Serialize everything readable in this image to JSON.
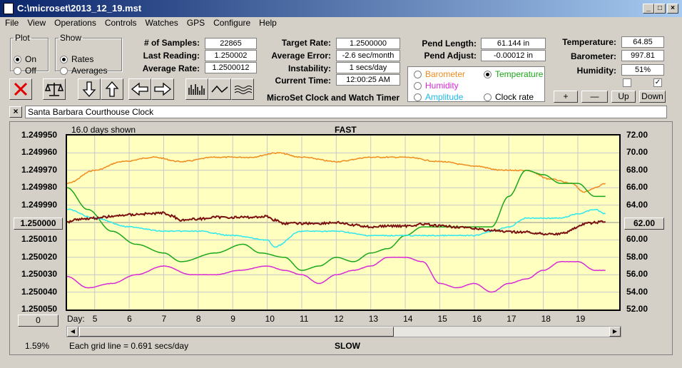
{
  "window": {
    "title": "C:\\microset\\2013_12_19.mst"
  },
  "menu": [
    "File",
    "View",
    "Operations",
    "Controls",
    "Watches",
    "GPS",
    "Configure",
    "Help"
  ],
  "plot_group": {
    "label": "Plot",
    "on": "On",
    "off": "Off"
  },
  "show_group": {
    "label": "Show",
    "rates": "Rates",
    "averages": "Averages"
  },
  "stats": {
    "samples_label": "# of Samples:",
    "samples": "22865",
    "last_label": "Last Reading:",
    "last": "1.250002",
    "avg_label": "Average Rate:",
    "avg": "1.2500012",
    "target_label": "Target Rate:",
    "target": "1.2500000",
    "error_label": "Average Error:",
    "error": "-2.6 sec/month",
    "instab_label": "Instability:",
    "instab": "1 secs/day",
    "time_label": "Current Time:",
    "time": "12:00:25 AM",
    "pend_len_label": "Pend Length:",
    "pend_len": "61.144 in",
    "pend_adj_label": "Pend Adjust:",
    "pend_adj": "-0.00012 in",
    "temp_label": "Temperature:",
    "temp": "64.85",
    "baro_label": "Barometer:",
    "baro": "997.81",
    "hum_label": "Humidity:",
    "hum": "51%"
  },
  "app_caption": "MicroSet Clock and Watch Timer",
  "sensor_legend": {
    "barometer": "Barometer",
    "temperature": "Temperature",
    "humidity": "Humidity",
    "amplitude": "Amplitude",
    "clock_rate": "Clock rate"
  },
  "colors": {
    "barometer": "#f08c1e",
    "temperature": "#1aa81a",
    "humidity": "#d62ad6",
    "amplitude": "#2ce8ee",
    "clock_rate": "#7a1010"
  },
  "scale_buttons": {
    "plus": "+",
    "minus": "—",
    "up": "Up",
    "down": "Down"
  },
  "clock_name": "Santa Barbara Courthouse Clock",
  "chart": {
    "days_shown": "16.0 days shown",
    "fast": "FAST",
    "slow": "SLOW",
    "grid_note": "Each grid line = 0.691 secs/day",
    "percent": "1.59%",
    "left_ticks": [
      "1.249950",
      "1.249960",
      "1.249970",
      "1.249980",
      "1.249990",
      "1.250000",
      "1.250010",
      "1.250020",
      "1.250030",
      "1.250040",
      "1.250050"
    ],
    "right_ticks": [
      "72.00",
      "70.00",
      "68.00",
      "66.00",
      "64.00",
      "62.00",
      "60.00",
      "58.00",
      "56.00",
      "54.00",
      "52.00"
    ],
    "left_center_button": "1.250000",
    "right_center_button": "62.00",
    "day_label": "Day:",
    "offset_button": "0",
    "days": [
      "5",
      "6",
      "7",
      "8",
      "9",
      "10",
      "11",
      "12",
      "13",
      "14",
      "15",
      "16",
      "17",
      "18",
      "19"
    ]
  },
  "chart_data": {
    "type": "line",
    "x_label": "Day:",
    "x_range": [
      4.2,
      20.2
    ],
    "y_left_range": [
      1.24995,
      1.25005
    ],
    "y_right_range": [
      52,
      72
    ],
    "grid": true,
    "series": [
      {
        "name": "Barometer",
        "axis": "right",
        "x": [
          4.2,
          5,
          5.8,
          6.7,
          7.5,
          8.5,
          9.5,
          10.3,
          11,
          12,
          13,
          14,
          15,
          16,
          16.8,
          17.5,
          18.2,
          18.8,
          19.2,
          19.5,
          19.8
        ],
        "values": [
          66.5,
          68,
          69,
          69.5,
          69,
          69.5,
          69.5,
          70,
          69.5,
          69,
          69.5,
          69.5,
          69,
          68.5,
          68,
          68,
          67,
          66.5,
          65.5,
          66,
          66.5
        ]
      },
      {
        "name": "Temperature",
        "axis": "right",
        "x": [
          4.2,
          4.8,
          5.5,
          6.2,
          7,
          7.5,
          8.5,
          9.3,
          9.8,
          10.5,
          11,
          11.5,
          12,
          12.5,
          13,
          13.5,
          14,
          14.5,
          15,
          15.5,
          16,
          16.5,
          17,
          17.5,
          18,
          18.5,
          19,
          19.5,
          19.8
        ],
        "values": [
          66,
          63.5,
          61,
          59.5,
          58.5,
          57.5,
          58.5,
          59.5,
          58.5,
          58,
          56.5,
          57,
          58,
          57.5,
          58.5,
          59,
          60.5,
          61.5,
          61.5,
          61.5,
          61.5,
          61.5,
          65,
          68,
          67.5,
          66.5,
          66.5,
          65,
          65
        ]
      },
      {
        "name": "Amplitude",
        "axis": "right",
        "x": [
          4.2,
          5,
          6,
          7,
          8,
          9,
          10,
          10.2,
          11,
          12,
          13,
          14,
          15,
          16,
          16.5,
          17,
          17.5,
          18,
          18.5,
          19,
          19.5,
          19.8
        ],
        "values": [
          63.5,
          62.5,
          61.5,
          61,
          61,
          60.5,
          60,
          59.2,
          61,
          61,
          60.5,
          60.5,
          60.5,
          60.5,
          61,
          61.5,
          62.5,
          62.5,
          62.5,
          63,
          63.5,
          63
        ]
      },
      {
        "name": "Humidity",
        "axis": "right",
        "x": [
          4.2,
          4.8,
          5.5,
          6.2,
          7,
          7.8,
          8.5,
          9.2,
          10,
          10.5,
          11,
          11.5,
          12,
          12.5,
          13,
          13.5,
          14,
          14.5,
          15,
          15.5,
          16,
          16.5,
          17,
          17.5,
          18,
          18.5,
          19,
          19.5,
          19.8
        ],
        "values": [
          55.8,
          54.5,
          55,
          56,
          57,
          56,
          56,
          56.5,
          57,
          56.5,
          56,
          55,
          56,
          56.5,
          57,
          58,
          58,
          57.5,
          55,
          54.5,
          55,
          54,
          55,
          55.5,
          56.5,
          57.5,
          57.5,
          56.5,
          56.5
        ]
      },
      {
        "name": "Clock rate",
        "axis": "left",
        "x": [
          4.2,
          4.5,
          5,
          5.5,
          6,
          6.5,
          7,
          7.2,
          7.5,
          8,
          8.5,
          9,
          9.5,
          10,
          10.2,
          10.5,
          11,
          11.5,
          12,
          12.5,
          13,
          13.5,
          14,
          14.5,
          15,
          15.5,
          16,
          16.5,
          17,
          17.5,
          18,
          18.5,
          19,
          19.05,
          19.3,
          19.6,
          19.8
        ],
        "values": [
          1.2499996,
          1.249998,
          1.2499975,
          1.2499965,
          1.2499955,
          1.249995,
          1.2499945,
          1.249996,
          1.2499985,
          1.249998,
          1.249997,
          1.249997,
          1.249997,
          1.2499965,
          1.2499985,
          1.2500005,
          1.2500005,
          1.2500005,
          1.25,
          1.2500015,
          1.2500025,
          1.250002,
          1.250002,
          1.250001,
          1.250002,
          1.2500025,
          1.2500035,
          1.2500045,
          1.2500055,
          1.2500055,
          1.2500065,
          1.2500065,
          1.250003,
          1.2500015,
          1.2500005,
          1.2499998,
          1.2499995
        ]
      }
    ]
  }
}
